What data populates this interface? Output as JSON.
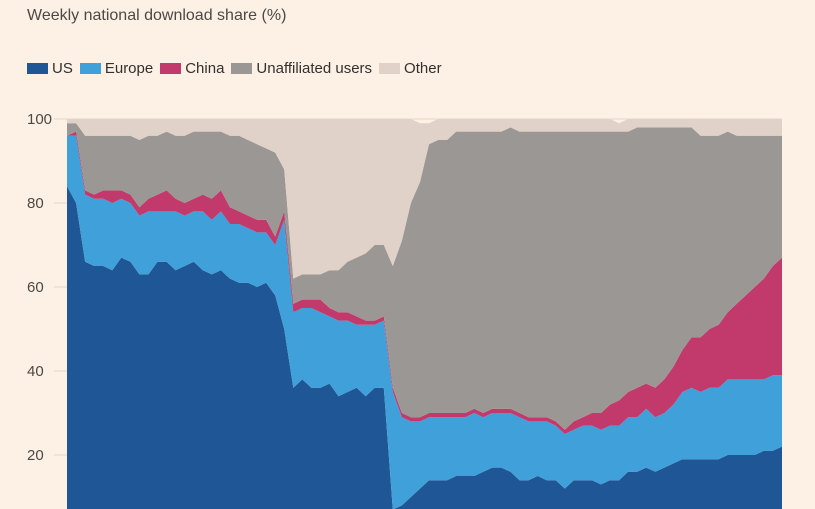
{
  "chart_data": {
    "type": "area",
    "stacked": true,
    "title": "Weekly national download share (%)",
    "xlabel": "",
    "ylabel": "",
    "ylim": [
      10,
      100
    ],
    "yticks": [
      100,
      80,
      60,
      40,
      20
    ],
    "x": [
      0,
      1,
      2,
      3,
      4,
      5,
      6,
      7,
      8,
      9,
      10,
      11,
      12,
      13,
      14,
      15,
      16,
      17,
      18,
      19,
      20,
      21,
      22,
      23,
      24,
      25,
      26,
      27,
      28,
      29,
      30,
      31,
      32,
      33,
      34,
      35,
      36,
      37,
      38,
      39,
      40,
      41,
      42,
      43,
      44,
      45,
      46,
      47,
      48,
      49,
      50,
      51,
      52,
      53,
      54,
      55,
      56,
      57,
      58,
      59,
      60,
      61,
      62,
      63,
      64,
      65,
      66,
      67,
      68,
      69,
      70,
      71,
      72,
      73,
      74,
      75,
      76,
      77,
      78,
      79
    ],
    "legend_position": "top-left",
    "series": [
      {
        "name": "US",
        "color": "#1f5696",
        "values": [
          84,
          80,
          66,
          65,
          65,
          64,
          67,
          66,
          63,
          63,
          66,
          66,
          64,
          65,
          66,
          64,
          63,
          64,
          62,
          61,
          61,
          60,
          61,
          58,
          50,
          36,
          38,
          36,
          36,
          37,
          34,
          35,
          36,
          34,
          36,
          36,
          7,
          8,
          10,
          12,
          14,
          14,
          14,
          15,
          15,
          15,
          16,
          17,
          17,
          16,
          14,
          14,
          15,
          14,
          14,
          12,
          14,
          14,
          14,
          13,
          14,
          14,
          16,
          16,
          17,
          16,
          17,
          18,
          19,
          19,
          19,
          19,
          19,
          20,
          20,
          20,
          20,
          21,
          21,
          22
        ]
      },
      {
        "name": "Europe",
        "color": "#3fa0da",
        "values": [
          12,
          16,
          16,
          16,
          16,
          16,
          14,
          14,
          14,
          15,
          12,
          12,
          14,
          12,
          12,
          14,
          13,
          14,
          13,
          14,
          13,
          13,
          12,
          12,
          26,
          18,
          17,
          19,
          18,
          16,
          18,
          17,
          15,
          17,
          15,
          16,
          28,
          21,
          18,
          16,
          15,
          15,
          15,
          14,
          14,
          15,
          13,
          13,
          13,
          14,
          15,
          14,
          13,
          14,
          13,
          13,
          12,
          13,
          13,
          13,
          13,
          13,
          13,
          13,
          14,
          13,
          13,
          14,
          16,
          17,
          16,
          17,
          17,
          18,
          18,
          18,
          18,
          17,
          18,
          17
        ]
      },
      {
        "name": "China",
        "color": "#c23a6b",
        "values": [
          0,
          1,
          1,
          1,
          2,
          3,
          2,
          2,
          2,
          3,
          4,
          5,
          3,
          3,
          3,
          4,
          5,
          5,
          4,
          3,
          3,
          3,
          3,
          2,
          2,
          2,
          2,
          2,
          3,
          2,
          2,
          2,
          2,
          1,
          1,
          1,
          1,
          1,
          1,
          1,
          1,
          1,
          1,
          1,
          1,
          1,
          1,
          1,
          1,
          1,
          1,
          1,
          1,
          1,
          1,
          1,
          2,
          2,
          3,
          4,
          5,
          6,
          6,
          7,
          6,
          7,
          8,
          9,
          10,
          12,
          13,
          14,
          15,
          16,
          18,
          20,
          22,
          24,
          26,
          28
        ]
      },
      {
        "name": "Unaffiliated users",
        "color": "#9b9795",
        "values": [
          3,
          2,
          13,
          14,
          13,
          13,
          13,
          14,
          16,
          15,
          14,
          14,
          15,
          16,
          16,
          15,
          16,
          14,
          17,
          18,
          18,
          18,
          17,
          20,
          10,
          6,
          6,
          6,
          6,
          9,
          10,
          12,
          14,
          16,
          18,
          17,
          29,
          41,
          51,
          56,
          64,
          65,
          65,
          67,
          67,
          66,
          67,
          66,
          66,
          67,
          67,
          68,
          68,
          68,
          69,
          71,
          69,
          68,
          67,
          67,
          65,
          64,
          62,
          62,
          61,
          62,
          60,
          57,
          53,
          50,
          48,
          46,
          45,
          43,
          40,
          38,
          36,
          34,
          31,
          29
        ]
      },
      {
        "name": "Other",
        "color": "#e0d2c8",
        "values": [
          1,
          1,
          4,
          4,
          4,
          4,
          4,
          4,
          5,
          4,
          4,
          3,
          4,
          4,
          3,
          3,
          3,
          3,
          4,
          4,
          5,
          6,
          7,
          8,
          12,
          38,
          37,
          37,
          37,
          36,
          36,
          34,
          33,
          32,
          30,
          30,
          35,
          29,
          20,
          14,
          5,
          5,
          5,
          3,
          3,
          3,
          3,
          3,
          3,
          2,
          3,
          3,
          3,
          3,
          3,
          3,
          3,
          3,
          3,
          3,
          3,
          2,
          3,
          2,
          2,
          2,
          2,
          2,
          2,
          2,
          4,
          4,
          4,
          3,
          4,
          4,
          4,
          4,
          4,
          4
        ]
      }
    ]
  }
}
